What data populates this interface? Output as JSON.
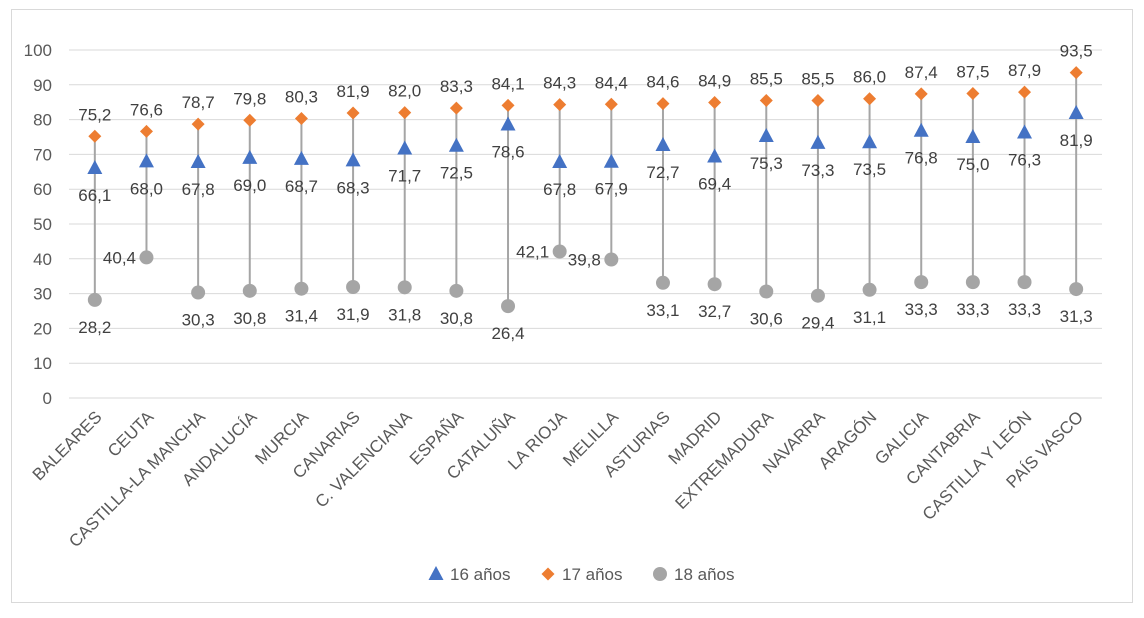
{
  "chart_data": {
    "type": "scatter",
    "title": "",
    "xlabel": "",
    "ylabel": "",
    "categories": [
      "BALEARES",
      "CEUTA",
      "CASTILLA-LA MANCHA",
      "ANDALUCÍA",
      "MURCIA",
      "CANARIAS",
      "C. VALENCIANA",
      "ESPAÑA",
      "CATALUÑA",
      "LA RIOJA",
      "MELILLA",
      "ASTURIAS",
      "MADRID",
      "EXTREMADURA",
      "NAVARRA",
      "ARAGÓN",
      "GALICIA",
      "CANTABRIA",
      "CASTILLA Y LEÓN",
      "PAÍS VASCO"
    ],
    "y_ticks": [
      "0",
      "10",
      "20",
      "30",
      "40",
      "50",
      "60",
      "70",
      "80",
      "90",
      "100"
    ],
    "ylim": [
      0,
      100
    ],
    "grid": true,
    "legend_position": "bottom",
    "series": [
      {
        "name": "16 años",
        "marker": "triangle",
        "color": "#4472C4",
        "values": [
          66.1,
          68.0,
          67.8,
          69.0,
          68.7,
          68.3,
          71.7,
          72.5,
          78.6,
          67.8,
          67.9,
          72.7,
          69.4,
          75.3,
          73.3,
          73.5,
          76.8,
          75.0,
          76.3,
          81.9
        ],
        "labels": [
          "66,1",
          "68,0",
          "67,8",
          "69,0",
          "68,7",
          "68,3",
          "71,7",
          "72,5",
          "78,6",
          "67,8",
          "67,9",
          "72,7",
          "69,4",
          "75,3",
          "73,3",
          "73,5",
          "76,8",
          "75,0",
          "76,3",
          "81,9"
        ]
      },
      {
        "name": "17 años",
        "marker": "diamond",
        "color": "#ED7D31",
        "values": [
          75.2,
          76.6,
          78.7,
          79.8,
          80.3,
          81.9,
          82.0,
          83.3,
          84.1,
          84.3,
          84.4,
          84.6,
          84.9,
          85.5,
          85.5,
          86.0,
          87.4,
          87.5,
          87.9,
          93.5
        ],
        "labels": [
          "75,2",
          "76,6",
          "78,7",
          "79,8",
          "80,3",
          "81,9",
          "82,0",
          "83,3",
          "84,1",
          "84,3",
          "84,4",
          "84,6",
          "84,9",
          "85,5",
          "85,5",
          "86,0",
          "87,4",
          "87,5",
          "87,9",
          "93,5"
        ]
      },
      {
        "name": "18 años",
        "marker": "circle",
        "color": "#A5A5A5",
        "values": [
          28.2,
          40.4,
          30.3,
          30.8,
          31.4,
          31.9,
          31.8,
          30.8,
          26.4,
          42.1,
          39.8,
          33.1,
          32.7,
          30.6,
          29.4,
          31.1,
          33.3,
          33.3,
          33.3,
          31.3
        ],
        "labels": [
          "28,2",
          "40,4",
          "30,3",
          "30,8",
          "31,4",
          "31,9",
          "31,8",
          "30,8",
          "26,4",
          "42,1",
          "39,8",
          "33,1",
          "32,7",
          "30,6",
          "29,4",
          "31,1",
          "33,3",
          "33,3",
          "33,3",
          "31,3"
        ]
      }
    ]
  }
}
